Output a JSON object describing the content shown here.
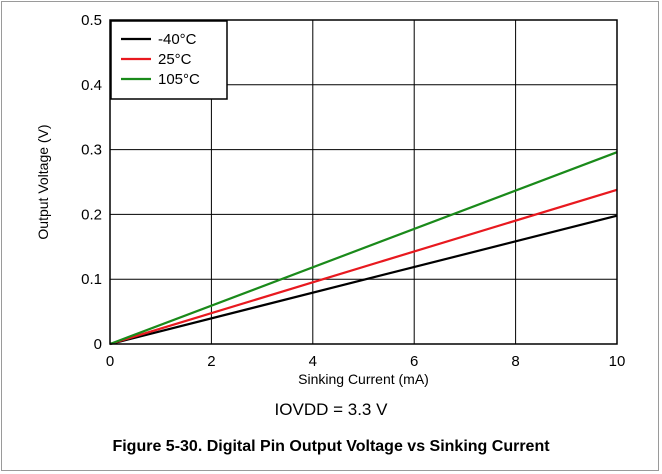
{
  "chart_data": {
    "type": "line",
    "xlabel": "Sinking Current (mA)",
    "ylabel": "Output Voltage (V)",
    "xlim": [
      0,
      10
    ],
    "ylim": [
      0,
      0.5
    ],
    "xticks": [
      "0",
      "2",
      "4",
      "6",
      "8",
      "10"
    ],
    "yticks": [
      "0",
      "0.1",
      "0.2",
      "0.3",
      "0.4",
      "0.5"
    ],
    "grid": true,
    "legend_position": "top-left",
    "series": [
      {
        "name": "-40°C",
        "color": "#000000",
        "x": [
          0,
          10
        ],
        "y": [
          0,
          0.198
        ]
      },
      {
        "name": "25°C",
        "color": "#e8191f",
        "x": [
          0,
          10
        ],
        "y": [
          0,
          0.238
        ]
      },
      {
        "name": "105°C",
        "color": "#1a8a1a",
        "x": [
          0,
          10
        ],
        "y": [
          0,
          0.296
        ]
      }
    ]
  },
  "condition_text": "IOVDD = 3.3 V",
  "caption": "Figure 5-30. Digital Pin Output Voltage vs Sinking Current"
}
